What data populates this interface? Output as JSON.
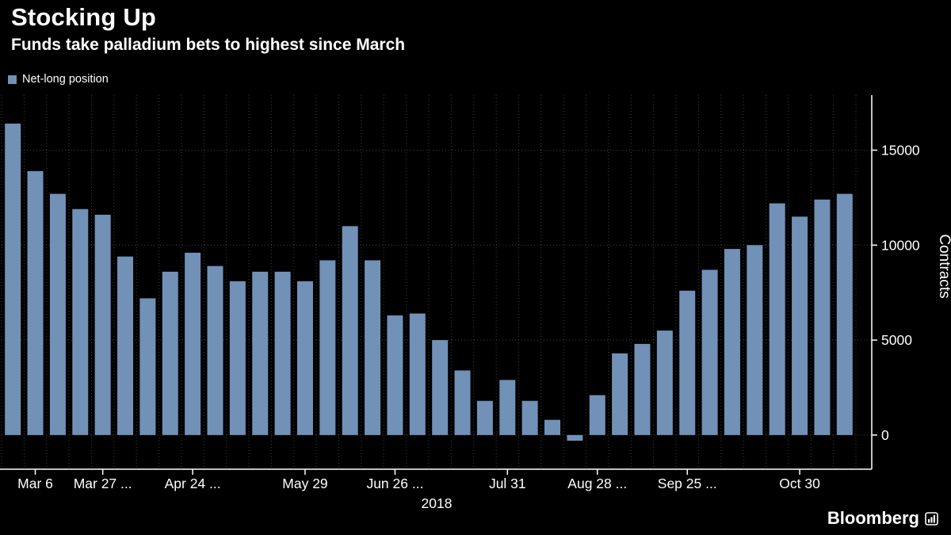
{
  "header": {
    "title": "Stocking Up",
    "subtitle": "Funds take palladium bets to highest since March"
  },
  "legend": {
    "label": "Net-long position",
    "swatch_color": "#7191b7"
  },
  "footer": {
    "brand": "Bloomberg"
  },
  "chart_data": {
    "type": "bar",
    "title": "Stocking Up",
    "subtitle": "Funds take palladium bets to highest since March",
    "series_name": "Net-long position",
    "values": [
      16400,
      13900,
      12700,
      11900,
      11600,
      9400,
      7200,
      8600,
      9600,
      8900,
      8100,
      8600,
      8600,
      8100,
      9200,
      11000,
      9200,
      6300,
      6400,
      5000,
      3400,
      1800,
      2900,
      1800,
      800,
      -300,
      2100,
      4300,
      4800,
      5500,
      7600,
      8700,
      9800,
      10000,
      12200,
      11500,
      12400,
      12700
    ],
    "x_tick_labels": [
      "Mar 6",
      "Mar 27 ...",
      "Apr 24 ...",
      "May 29",
      "Jun 26 ...",
      "Jul 31",
      "Aug 28 ...",
      "Sep 25 ...",
      "Oct 30"
    ],
    "x_tick_indices": [
      1,
      4,
      8,
      13,
      17,
      22,
      26,
      30,
      35
    ],
    "x_axis_year": "2018",
    "y_ticks": [
      0,
      5000,
      10000,
      15000
    ],
    "y_label": "Contracts",
    "ylim": [
      -1800,
      17900
    ],
    "bar_color": "#7191b7",
    "grid_color": "#424242",
    "axis_color": "#ffffff",
    "background": "#000000",
    "grid": true,
    "legend_position": "top-left",
    "y_axis_side": "right"
  }
}
